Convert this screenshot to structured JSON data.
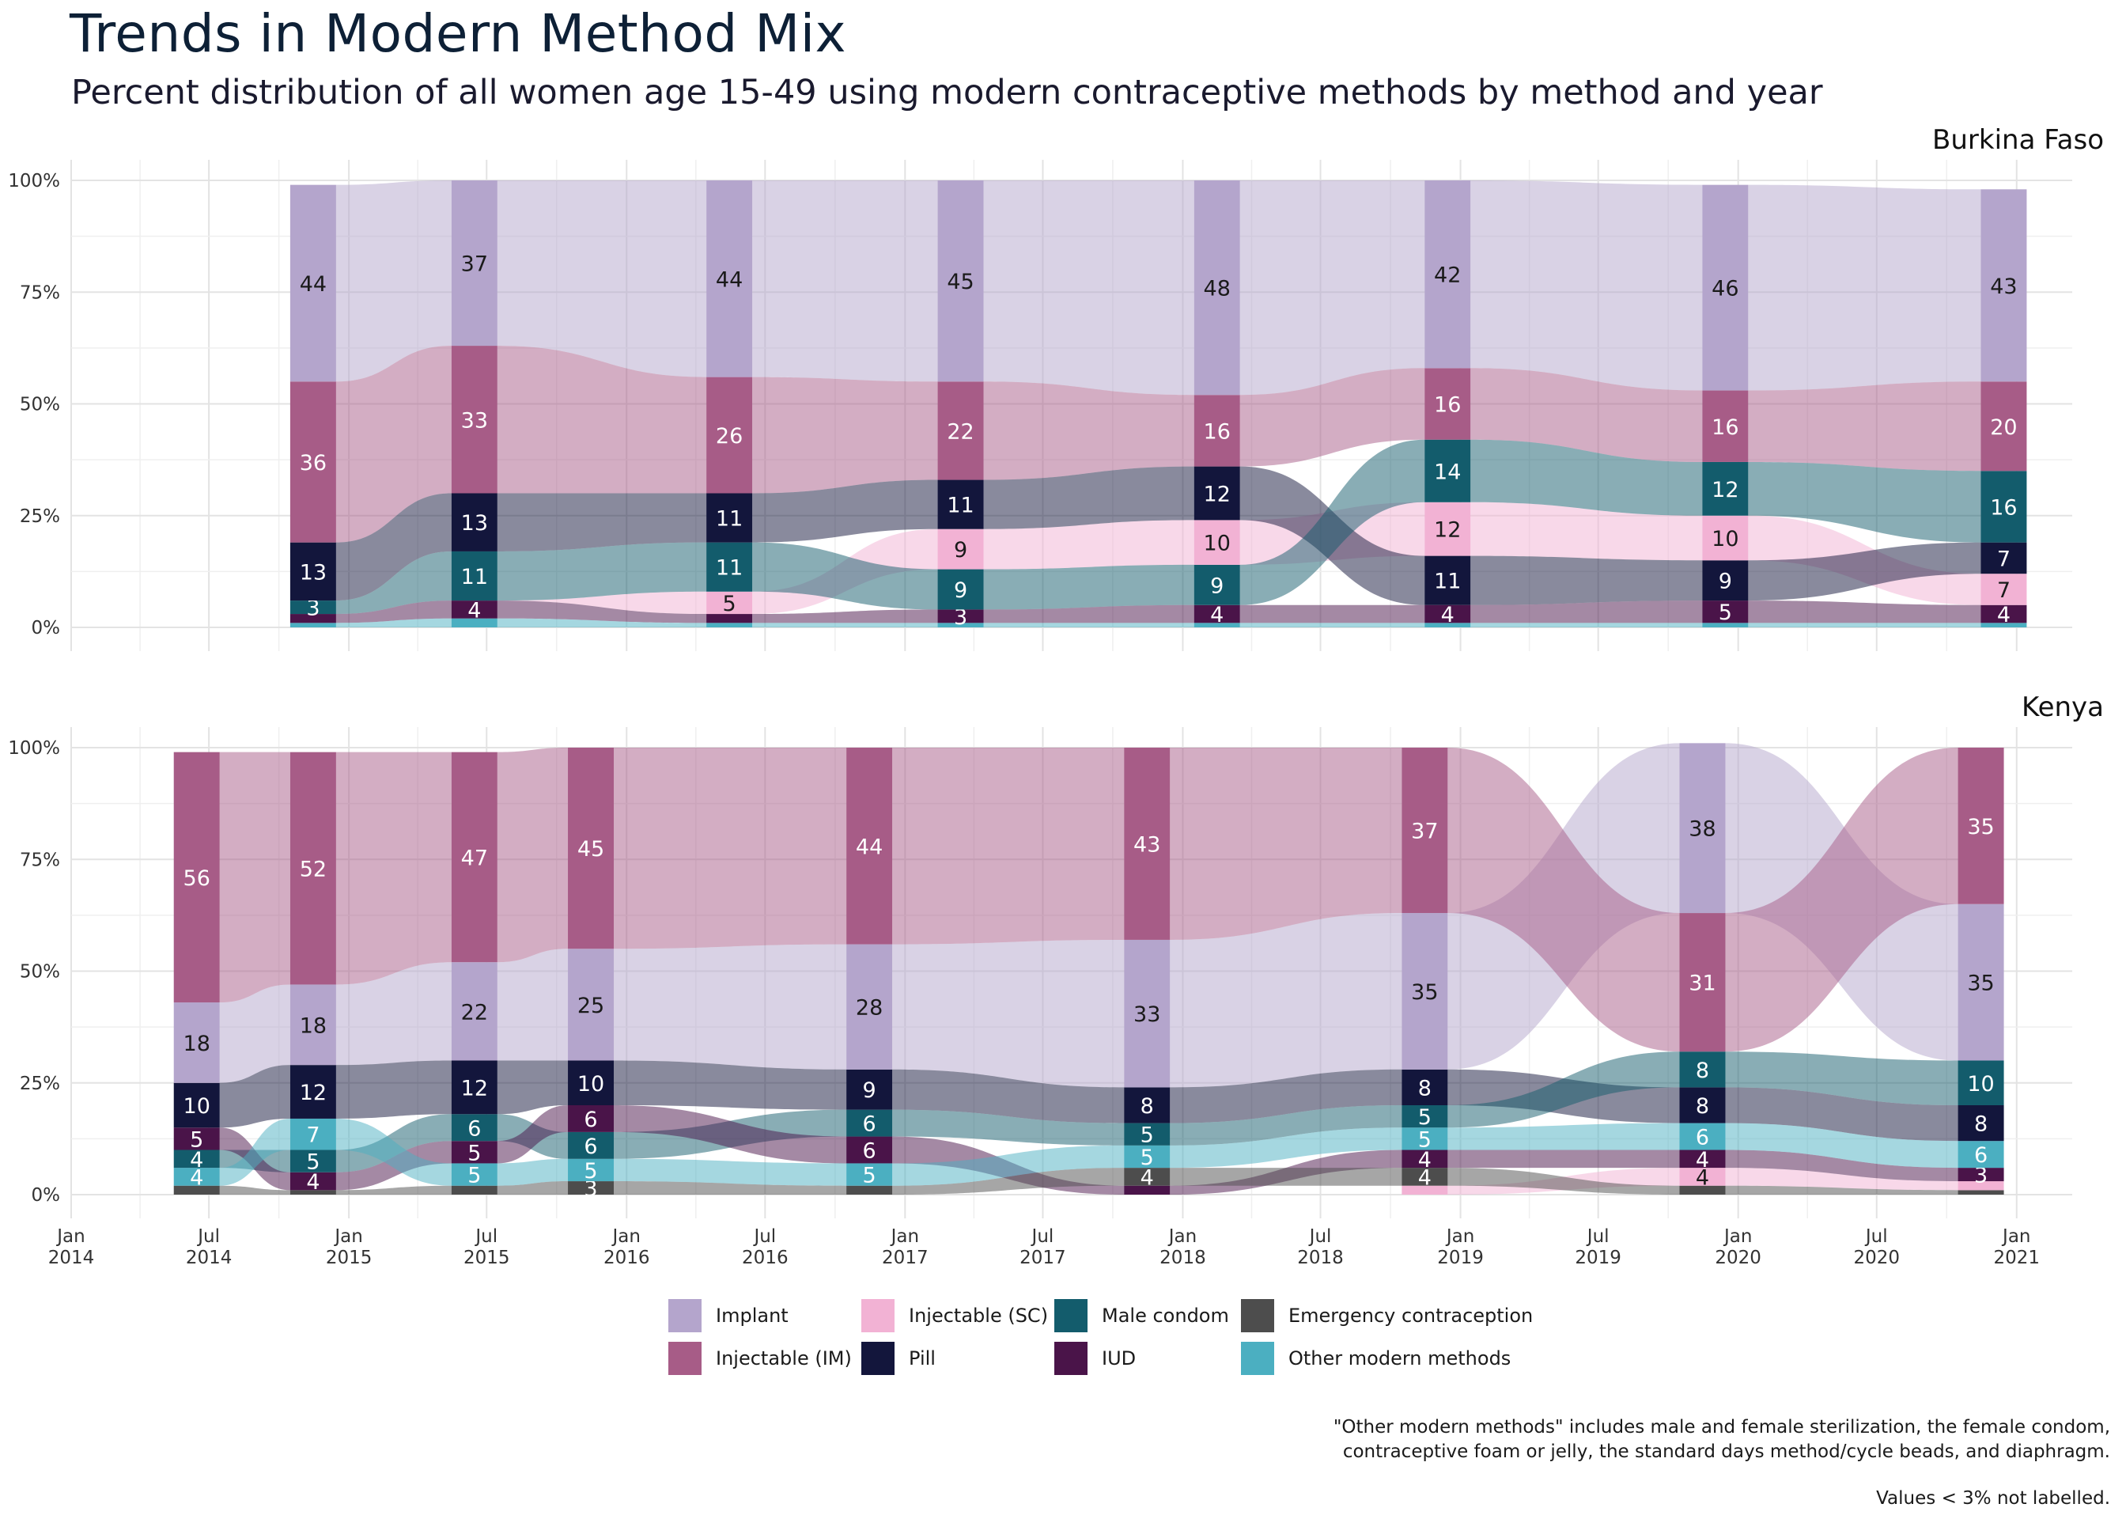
{
  "title": "Trends in Modern Method Mix",
  "subtitle": "Percent distribution of all women age 15-49 using modern contraceptive methods by method and year",
  "notes": {
    "line1": "\"Other modern methods\" includes male and female sterilization, the female condom,",
    "line2": "contraceptive foam or jelly, the standard days method/cycle beads, and diaphragm.",
    "line3": "Values < 3% not labelled."
  },
  "methods": [
    {
      "name": "Implant",
      "color": "#b4a5cc",
      "label_color": "#1a1a1a"
    },
    {
      "name": "Injectable (IM)",
      "color": "#a75c87",
      "label_color": "#ffffff"
    },
    {
      "name": "Injectable (SC)",
      "color": "#f2b2d4",
      "label_color": "#1a1a1a"
    },
    {
      "name": "Pill",
      "color": "#13163c",
      "label_color": "#ffffff"
    },
    {
      "name": "Male condom",
      "color": "#135c6c",
      "label_color": "#ffffff"
    },
    {
      "name": "IUD",
      "color": "#4a1449",
      "label_color": "#ffffff"
    },
    {
      "name": "Emergency contraception",
      "color": "#4d4d4d",
      "label_color": "#ffffff"
    },
    {
      "name": "Other modern methods",
      "color": "#4bafc1",
      "label_color": "#ffffff"
    }
  ],
  "legend": [
    {
      "name": "Implant",
      "color": "#b4a5cc"
    },
    {
      "name": "Injectable (SC)",
      "color": "#f2b2d4"
    },
    {
      "name": "Male condom",
      "color": "#135c6c"
    },
    {
      "name": "Emergency contraception",
      "color": "#4d4d4d"
    },
    {
      "name": "Injectable (IM)",
      "color": "#a75c87"
    },
    {
      "name": "Pill",
      "color": "#13163c"
    },
    {
      "name": "IUD",
      "color": "#4a1449"
    },
    {
      "name": "Other modern methods",
      "color": "#4bafc1"
    }
  ],
  "chart_data": {
    "type": "area",
    "grid": true,
    "x_domain": [
      "2014-01-01",
      "2021-03-15"
    ],
    "x_ticks": [
      {
        "date": "2014-01-01",
        "label": [
          "Jan",
          "2014"
        ]
      },
      {
        "date": "2014-07-01",
        "label": [
          "Jul",
          "2014"
        ]
      },
      {
        "date": "2015-01-01",
        "label": [
          "Jan",
          "2015"
        ]
      },
      {
        "date": "2015-07-01",
        "label": [
          "Jul",
          "2015"
        ]
      },
      {
        "date": "2016-01-01",
        "label": [
          "Jan",
          "2016"
        ]
      },
      {
        "date": "2016-07-01",
        "label": [
          "Jul",
          "2016"
        ]
      },
      {
        "date": "2017-01-01",
        "label": [
          "Jan",
          "2017"
        ]
      },
      {
        "date": "2017-07-01",
        "label": [
          "Jul",
          "2017"
        ]
      },
      {
        "date": "2018-01-01",
        "label": [
          "Jan",
          "2018"
        ]
      },
      {
        "date": "2018-07-01",
        "label": [
          "Jul",
          "2018"
        ]
      },
      {
        "date": "2019-01-01",
        "label": [
          "Jan",
          "2019"
        ]
      },
      {
        "date": "2019-07-01",
        "label": [
          "Jul",
          "2019"
        ]
      },
      {
        "date": "2020-01-01",
        "label": [
          "Jan",
          "2020"
        ]
      },
      {
        "date": "2020-07-01",
        "label": [
          "Jul",
          "2020"
        ]
      },
      {
        "date": "2021-01-01",
        "label": [
          "Jan",
          "2021"
        ]
      }
    ],
    "y_ticks": [
      0,
      25,
      50,
      75,
      100
    ],
    "y_tick_labels": [
      "0%",
      "25%",
      "50%",
      "75%",
      "100%"
    ],
    "ylim": [
      0,
      100
    ],
    "label_threshold": 3,
    "panels": [
      {
        "name": "Burkina Faso",
        "rounds": [
          {
            "date": "2014-11-15",
            "stack": [
              "Other modern methods",
              "Emergency contraception",
              "IUD",
              "Male condom",
              "Injectable (SC)",
              "Pill",
              "Injectable (IM)",
              "Implant"
            ],
            "values": {
              "Implant": 44,
              "Injectable (IM)": 36,
              "Injectable (SC)": 0,
              "Pill": 13,
              "Male condom": 3,
              "IUD": 2,
              "Emergency contraception": 0,
              "Other modern methods": 1
            }
          },
          {
            "date": "2015-06-15",
            "stack": [
              "Other modern methods",
              "Emergency contraception",
              "IUD",
              "Injectable (SC)",
              "Male condom",
              "Pill",
              "Injectable (IM)",
              "Implant"
            ],
            "values": {
              "Implant": 37,
              "Injectable (IM)": 33,
              "Injectable (SC)": 0,
              "Pill": 13,
              "Male condom": 11,
              "IUD": 4,
              "Emergency contraception": 0,
              "Other modern methods": 2
            }
          },
          {
            "date": "2016-05-15",
            "stack": [
              "Other modern methods",
              "Emergency contraception",
              "IUD",
              "Injectable (SC)",
              "Male condom",
              "Pill",
              "Injectable (IM)",
              "Implant"
            ],
            "values": {
              "Implant": 44,
              "Injectable (IM)": 26,
              "Injectable (SC)": 5,
              "Pill": 11,
              "Male condom": 11,
              "IUD": 2,
              "Emergency contraception": 0,
              "Other modern methods": 1
            }
          },
          {
            "date": "2017-03-15",
            "stack": [
              "Other modern methods",
              "Emergency contraception",
              "IUD",
              "Male condom",
              "Injectable (SC)",
              "Pill",
              "Injectable (IM)",
              "Implant"
            ],
            "values": {
              "Implant": 45,
              "Injectable (IM)": 22,
              "Injectable (SC)": 9,
              "Pill": 11,
              "Male condom": 9,
              "IUD": 3,
              "Emergency contraception": 0,
              "Other modern methods": 1
            }
          },
          {
            "date": "2018-02-15",
            "stack": [
              "Other modern methods",
              "Emergency contraception",
              "IUD",
              "Male condom",
              "Injectable (SC)",
              "Pill",
              "Injectable (IM)",
              "Implant"
            ],
            "values": {
              "Implant": 48,
              "Injectable (IM)": 16,
              "Injectable (SC)": 10,
              "Pill": 12,
              "Male condom": 9,
              "IUD": 4,
              "Emergency contraception": 0,
              "Other modern methods": 1
            }
          },
          {
            "date": "2018-12-15",
            "stack": [
              "Other modern methods",
              "Emergency contraception",
              "IUD",
              "Pill",
              "Injectable (SC)",
              "Male condom",
              "Injectable (IM)",
              "Implant"
            ],
            "values": {
              "Implant": 42,
              "Injectable (IM)": 16,
              "Injectable (SC)": 12,
              "Pill": 11,
              "Male condom": 14,
              "IUD": 4,
              "Emergency contraception": 0,
              "Other modern methods": 1
            }
          },
          {
            "date": "2019-12-15",
            "stack": [
              "Other modern methods",
              "Emergency contraception",
              "IUD",
              "Pill",
              "Injectable (SC)",
              "Male condom",
              "Injectable (IM)",
              "Implant"
            ],
            "values": {
              "Implant": 46,
              "Injectable (IM)": 16,
              "Injectable (SC)": 10,
              "Pill": 9,
              "Male condom": 12,
              "IUD": 5,
              "Emergency contraception": 0,
              "Other modern methods": 1
            }
          },
          {
            "date": "2020-12-15",
            "stack": [
              "Other modern methods",
              "Emergency contraception",
              "IUD",
              "Injectable (SC)",
              "Pill",
              "Male condom",
              "Injectable (IM)",
              "Implant"
            ],
            "values": {
              "Implant": 43,
              "Injectable (IM)": 20,
              "Injectable (SC)": 7,
              "Pill": 7,
              "Male condom": 16,
              "IUD": 4,
              "Emergency contraception": 0,
              "Other modern methods": 1
            }
          }
        ]
      },
      {
        "name": "Kenya",
        "rounds": [
          {
            "date": "2014-06-15",
            "stack": [
              "Emergency contraception",
              "Other modern methods",
              "Male condom",
              "IUD",
              "Pill",
              "Implant",
              "Injectable (IM)"
            ],
            "values": {
              "Implant": 18,
              "Injectable (IM)": 56,
              "Injectable (SC)": 0,
              "Pill": 10,
              "Male condom": 4,
              "IUD": 5,
              "Emergency contraception": 2,
              "Other modern methods": 4
            }
          },
          {
            "date": "2014-11-15",
            "stack": [
              "Emergency contraception",
              "IUD",
              "Male condom",
              "Other modern methods",
              "Pill",
              "Implant",
              "Injectable (IM)"
            ],
            "values": {
              "Implant": 18,
              "Injectable (IM)": 52,
              "Injectable (SC)": 0,
              "Pill": 12,
              "Male condom": 5,
              "IUD": 4,
              "Emergency contraception": 1,
              "Other modern methods": 7
            }
          },
          {
            "date": "2015-06-15",
            "stack": [
              "Emergency contraception",
              "Other modern methods",
              "IUD",
              "Male condom",
              "Pill",
              "Implant",
              "Injectable (IM)"
            ],
            "values": {
              "Implant": 22,
              "Injectable (IM)": 47,
              "Injectable (SC)": 0,
              "Pill": 12,
              "Male condom": 6,
              "IUD": 5,
              "Emergency contraception": 2,
              "Other modern methods": 5
            }
          },
          {
            "date": "2015-11-15",
            "stack": [
              "Emergency contraception",
              "Other modern methods",
              "Male condom",
              "IUD",
              "Pill",
              "Implant",
              "Injectable (IM)"
            ],
            "values": {
              "Implant": 25,
              "Injectable (IM)": 45,
              "Injectable (SC)": 0,
              "Pill": 10,
              "Male condom": 6,
              "IUD": 6,
              "Emergency contraception": 3,
              "Other modern methods": 5
            }
          },
          {
            "date": "2016-11-15",
            "stack": [
              "Emergency contraception",
              "Other modern methods",
              "IUD",
              "Male condom",
              "Pill",
              "Implant",
              "Injectable (IM)"
            ],
            "values": {
              "Implant": 28,
              "Injectable (IM)": 44,
              "Injectable (SC)": 0,
              "Pill": 9,
              "Male condom": 6,
              "IUD": 6,
              "Emergency contraception": 2,
              "Other modern methods": 5
            }
          },
          {
            "date": "2017-11-15",
            "stack": [
              "IUD",
              "Emergency contraception",
              "Other modern methods",
              "Male condom",
              "Pill",
              "Implant",
              "Injectable (IM)"
            ],
            "values": {
              "Implant": 33,
              "Injectable (IM)": 43,
              "Injectable (SC)": 0,
              "Pill": 8,
              "Male condom": 5,
              "IUD": 2,
              "Emergency contraception": 4,
              "Other modern methods": 5
            }
          },
          {
            "date": "2018-11-15",
            "stack": [
              "Injectable (SC)",
              "Emergency contraception",
              "IUD",
              "Other modern methods",
              "Male condom",
              "Pill",
              "Implant",
              "Injectable (IM)"
            ],
            "values": {
              "Implant": 35,
              "Injectable (IM)": 37,
              "Injectable (SC)": 2,
              "Pill": 8,
              "Male condom": 5,
              "IUD": 4,
              "Emergency contraception": 4,
              "Other modern methods": 5
            }
          },
          {
            "date": "2019-11-15",
            "stack": [
              "Emergency contraception",
              "Injectable (SC)",
              "IUD",
              "Other modern methods",
              "Pill",
              "Male condom",
              "Injectable (IM)",
              "Implant"
            ],
            "values": {
              "Implant": 38,
              "Injectable (IM)": 31,
              "Injectable (SC)": 4,
              "Pill": 8,
              "Male condom": 8,
              "IUD": 4,
              "Emergency contraception": 2,
              "Other modern methods": 6
            }
          },
          {
            "date": "2020-11-15",
            "stack": [
              "Emergency contraception",
              "Injectable (SC)",
              "IUD",
              "Other modern methods",
              "Pill",
              "Male condom",
              "Implant",
              "Injectable (IM)"
            ],
            "values": {
              "Implant": 35,
              "Injectable (IM)": 35,
              "Injectable (SC)": 2,
              "Pill": 8,
              "Male condom": 10,
              "IUD": 3,
              "Emergency contraception": 1,
              "Other modern methods": 6
            }
          }
        ]
      }
    ]
  }
}
